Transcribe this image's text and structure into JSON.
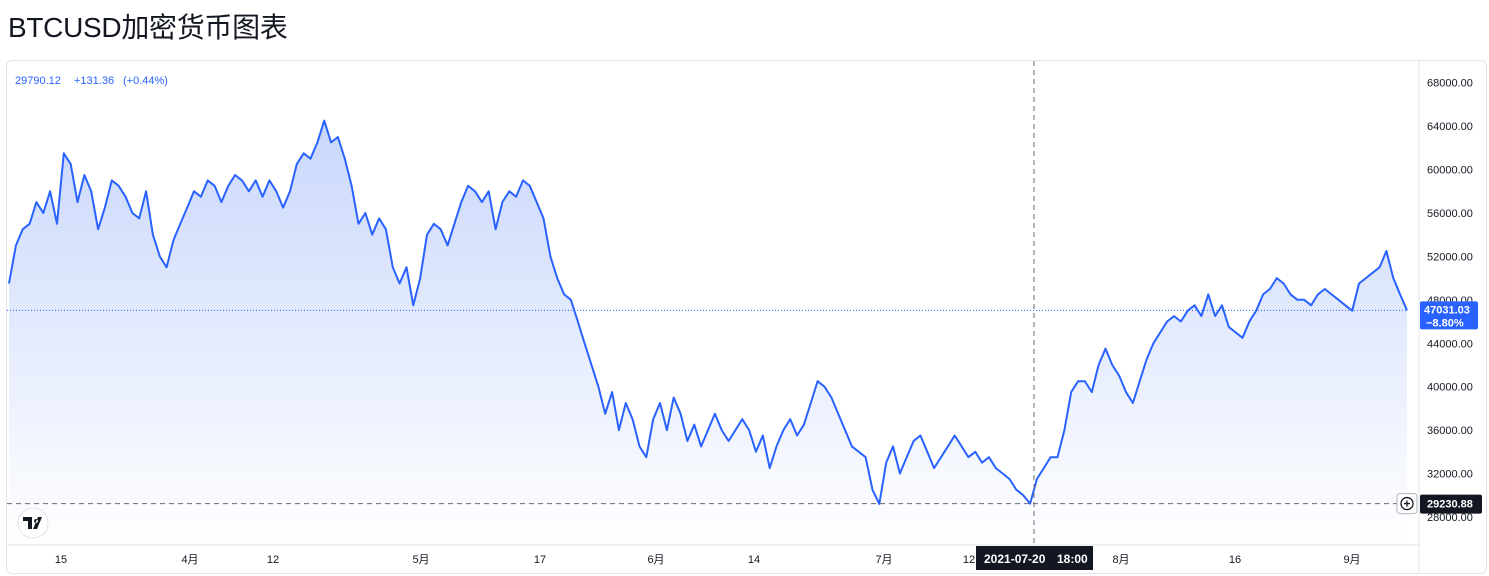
{
  "title": "BTCUSD加密货币图表",
  "legend": {
    "price": "29790.12",
    "change": "+131.36",
    "change_pct": "(+0.44%)"
  },
  "price_tag": {
    "value": "47031.03",
    "change": "−8.80%"
  },
  "low_tag": {
    "value": "29230.88"
  },
  "crosshair": {
    "date": "2021-07-20",
    "time": "18:00"
  },
  "colors": {
    "line": "#2962ff",
    "area_top": "#c9d7fb",
    "area_bottom": "#ffffff",
    "tag_dark": "#131722"
  },
  "chart_data": {
    "type": "area",
    "ylim": [
      25600,
      70000
    ],
    "y_ticks": [
      "28000.00",
      "32000.00",
      "36000.00",
      "40000.00",
      "44000.00",
      "48000.00",
      "52000.00",
      "56000.00",
      "60000.00",
      "64000.00",
      "68000.00"
    ],
    "x_ticks": [
      "15",
      "4月",
      "12",
      "5月",
      "17",
      "6月",
      "14",
      "7月",
      "12",
      "8月",
      "16",
      "9月"
    ],
    "current_price": 47031.03,
    "low_price": 29230.88,
    "series": [
      {
        "values": [
          49500,
          53000,
          54500,
          55000,
          57000,
          56000,
          58000,
          55000,
          61500,
          60500,
          57000,
          59500,
          58000,
          54500,
          56500,
          59000,
          58500,
          57500,
          56000,
          55500,
          58000,
          54000,
          52000,
          51000,
          53500,
          55000,
          56500,
          58000,
          57500,
          59000,
          58500,
          57000,
          58500,
          59500,
          59000,
          58000,
          59000,
          57500,
          59000,
          58000,
          56500,
          58000,
          60500,
          61500,
          61000,
          62500,
          64500,
          62500,
          63000,
          61000,
          58500,
          55000,
          56000,
          54000,
          55500,
          54500,
          51000,
          49500,
          51000,
          47500,
          50000,
          54000,
          55000,
          54500,
          53000,
          55000,
          57000,
          58500,
          58000,
          57000,
          58000,
          54500,
          57000,
          58000,
          57500,
          59000,
          58500,
          57000,
          55500,
          52000,
          50000,
          48500,
          48000,
          46000,
          44000,
          42000,
          40000,
          37500,
          39500,
          36000,
          38500,
          37000,
          34500,
          33500,
          37000,
          38500,
          36000,
          39000,
          37500,
          35000,
          36500,
          34500,
          36000,
          37500,
          36000,
          35000,
          36000,
          37000,
          36000,
          34000,
          35500,
          32500,
          34500,
          36000,
          37000,
          35500,
          36500,
          38500,
          40500,
          40000,
          39000,
          37500,
          36000,
          34500,
          34000,
          33500,
          30500,
          29200,
          33000,
          34500,
          32000,
          33500,
          35000,
          35500,
          34000,
          32500,
          33500,
          34500,
          35500,
          34500,
          33500,
          34000,
          33000,
          33500,
          32500,
          32000,
          31500,
          30500,
          30000,
          29230,
          31500,
          32500,
          33500,
          33500,
          36000,
          39500,
          40500,
          40500,
          39500,
          42000,
          43500,
          42000,
          41000,
          39500,
          38500,
          40500,
          42500,
          44000,
          45000,
          46000,
          46500,
          46000,
          47000,
          47500,
          46500,
          48500,
          46500,
          47500,
          45500,
          45000,
          44500,
          46000,
          47000,
          48500,
          49000,
          50000,
          49500,
          48500,
          48000,
          48000,
          47500,
          48500,
          49000,
          48500,
          48000,
          47500,
          47000,
          49500,
          50000,
          50500,
          51000,
          52500,
          50000,
          48500,
          47031
        ]
      }
    ]
  }
}
